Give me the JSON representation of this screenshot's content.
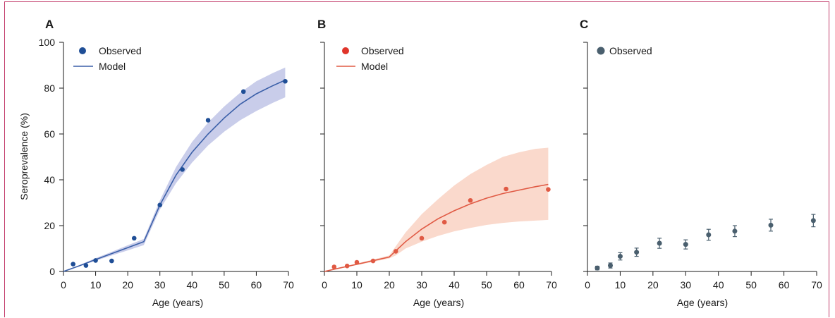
{
  "chart_data": [
    {
      "panel": "A",
      "type": "line",
      "xlabel": "Age (years)",
      "ylabel": "Seroprevalence (%)",
      "xlim": [
        0,
        70
      ],
      "ylim": [
        0,
        100
      ],
      "xticks": [
        0,
        10,
        20,
        30,
        40,
        50,
        60,
        70
      ],
      "yticks": [
        0,
        20,
        40,
        60,
        80,
        100
      ],
      "legend": {
        "position": "top-left",
        "observed": "Observed",
        "model": "Model"
      },
      "colors": {
        "point": "#1f4e96",
        "line": "#3a5fa8",
        "band": "#c9cdea"
      },
      "observed": {
        "x": [
          3,
          7,
          10,
          15,
          22,
          30,
          37,
          45,
          56,
          69
        ],
        "y": [
          3.2,
          2.6,
          4.8,
          4.6,
          14.5,
          29,
          44.5,
          66,
          78.5,
          83
        ]
      },
      "model": {
        "x": [
          0,
          5,
          10,
          15,
          20,
          25,
          30,
          35,
          40,
          45,
          50,
          55,
          60,
          65,
          69
        ],
        "y": [
          0,
          2.5,
          5.2,
          7.8,
          10.4,
          13,
          29,
          42,
          52,
          60,
          67,
          73,
          77.5,
          81,
          83.5
        ],
        "lower": [
          0,
          2.3,
          4.7,
          7,
          9.2,
          11.5,
          27,
          38.5,
          47.5,
          55,
          61,
          66,
          70,
          73.5,
          76
        ],
        "upper": [
          0,
          2.8,
          5.8,
          8.6,
          11.4,
          14.2,
          31,
          45.5,
          56.5,
          65,
          72,
          78,
          83,
          86.5,
          89
        ]
      }
    },
    {
      "panel": "B",
      "type": "line",
      "xlabel": "Age (years)",
      "ylabel": "",
      "xlim": [
        0,
        70
      ],
      "ylim": [
        0,
        100
      ],
      "xticks": [
        0,
        10,
        20,
        30,
        40,
        50,
        60,
        70
      ],
      "yticks": [
        0,
        20,
        40,
        60,
        80,
        100
      ],
      "legend": {
        "position": "top-left",
        "observed": "Observed",
        "model": "Model"
      },
      "colors": {
        "point": "#e05a44",
        "line": "#e05a44",
        "band": "#fad9cc"
      },
      "observed": {
        "x": [
          3,
          7,
          10,
          15,
          22,
          30,
          37,
          45,
          56,
          69
        ],
        "y": [
          2,
          2.4,
          4,
          4.6,
          8.8,
          14.5,
          21.5,
          31,
          36,
          35.8
        ]
      },
      "model": {
        "x": [
          0,
          5,
          10,
          15,
          20,
          22,
          25,
          30,
          35,
          40,
          45,
          50,
          55,
          60,
          65,
          69
        ],
        "y": [
          0,
          1.6,
          3.1,
          4.7,
          6.3,
          9,
          13,
          18.5,
          23,
          26.5,
          29.5,
          32,
          34,
          35.5,
          37,
          38
        ],
        "lower": [
          0,
          1.4,
          2.8,
          4.2,
          5.7,
          7,
          10,
          13,
          15.5,
          17.5,
          19,
          20.3,
          21.2,
          21.8,
          22.2,
          22.5
        ],
        "upper": [
          0,
          1.8,
          3.5,
          5.2,
          7,
          11,
          17,
          25,
          31.5,
          37.5,
          42.5,
          46.5,
          50,
          52,
          53.5,
          54
        ]
      }
    },
    {
      "panel": "C",
      "type": "scatter",
      "xlabel": "Age (years)",
      "ylabel": "",
      "xlim": [
        0,
        70
      ],
      "ylim": [
        0,
        100
      ],
      "xticks": [
        0,
        10,
        20,
        30,
        40,
        50,
        60,
        70
      ],
      "yticks": [
        0,
        20,
        40,
        60,
        80,
        100
      ],
      "legend": {
        "position": "top-left",
        "observed": "Observed"
      },
      "colors": {
        "point": "#4a5f6e",
        "error": "#4a5f6e"
      },
      "observed": {
        "x": [
          3,
          7,
          10,
          15,
          22,
          30,
          37,
          45,
          56,
          69
        ],
        "y": [
          1.5,
          2.6,
          6.6,
          8.4,
          12.3,
          11.8,
          16,
          17.6,
          20.2,
          22.2
        ],
        "err": [
          0.8,
          1.1,
          1.6,
          1.8,
          2.2,
          2,
          2.4,
          2.4,
          2.6,
          2.7
        ]
      }
    }
  ]
}
